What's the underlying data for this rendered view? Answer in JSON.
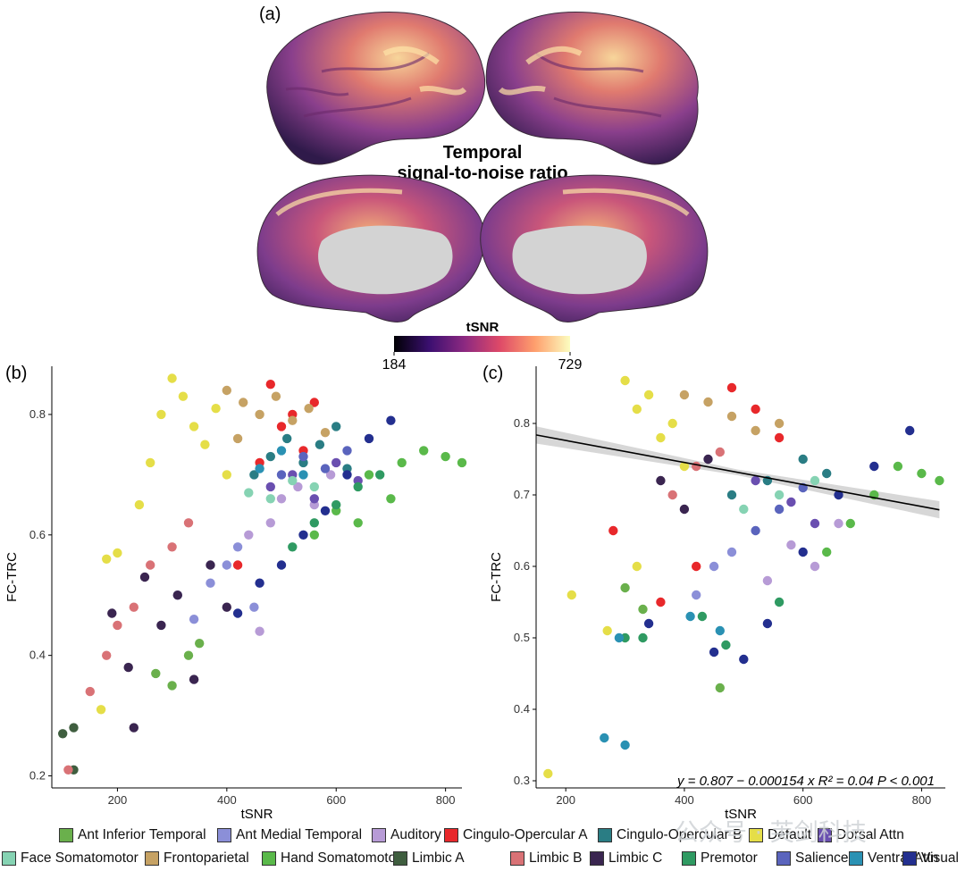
{
  "panels": {
    "a": {
      "label": "(a)",
      "title_line1": "Temporal",
      "title_line2": "signal-to-noise ratio",
      "colorbar": {
        "title": "tSNR",
        "min": "184",
        "max": "729",
        "colors": [
          "#000004",
          "#3b0f70",
          "#8c2981",
          "#de4968",
          "#fe9f6d",
          "#fcfdbf"
        ]
      }
    },
    "b": {
      "label": "(b)"
    },
    "c": {
      "label": "(c)",
      "equation": "y = 0.807 − 0.000154 x   R² = 0.04   P < 0.001"
    }
  },
  "chart_data": [
    {
      "panel": "b",
      "type": "scatter",
      "xlabel": "tSNR",
      "ylabel": "FC-TRC",
      "xlim": [
        80,
        830
      ],
      "ylim": [
        0.18,
        0.88
      ],
      "xticks": [
        200,
        400,
        600,
        800
      ],
      "yticks": [
        0.2,
        0.4,
        0.6,
        0.8
      ],
      "grid": false,
      "series": [
        {
          "name": "Ant Inferior Temporal",
          "color": "#6ab04c",
          "points": [
            [
              270,
              0.37
            ],
            [
              300,
              0.35
            ],
            [
              330,
              0.4
            ],
            [
              350,
              0.42
            ]
          ]
        },
        {
          "name": "Ant Medial Temporal",
          "color": "#8b8fd8",
          "points": [
            [
              310,
              0.5
            ],
            [
              340,
              0.46
            ],
            [
              370,
              0.52
            ],
            [
              400,
              0.55
            ],
            [
              420,
              0.58
            ],
            [
              450,
              0.48
            ]
          ]
        },
        {
          "name": "Auditory",
          "color": "#b79bd6",
          "points": [
            [
              440,
              0.6
            ],
            [
              460,
              0.44
            ],
            [
              480,
              0.62
            ],
            [
              500,
              0.66
            ],
            [
              530,
              0.68
            ],
            [
              560,
              0.65
            ],
            [
              590,
              0.7
            ]
          ]
        },
        {
          "name": "Cingulo-Opercular A",
          "color": "#e8282b",
          "points": [
            [
              420,
              0.55
            ],
            [
              460,
              0.72
            ],
            [
              480,
              0.85
            ],
            [
              500,
              0.78
            ],
            [
              520,
              0.8
            ],
            [
              540,
              0.74
            ],
            [
              560,
              0.82
            ]
          ]
        },
        {
          "name": "Cingulo-Opercular B",
          "color": "#2a7d84",
          "points": [
            [
              450,
              0.7
            ],
            [
              480,
              0.73
            ],
            [
              510,
              0.76
            ],
            [
              540,
              0.72
            ],
            [
              570,
              0.75
            ],
            [
              600,
              0.78
            ],
            [
              620,
              0.71
            ]
          ]
        },
        {
          "name": "Default",
          "color": "#e5de48",
          "points": [
            [
              180,
              0.56
            ],
            [
              200,
              0.57
            ],
            [
              240,
              0.65
            ],
            [
              260,
              0.72
            ],
            [
              280,
              0.8
            ],
            [
              300,
              0.86
            ],
            [
              320,
              0.83
            ],
            [
              340,
              0.78
            ],
            [
              360,
              0.75
            ],
            [
              380,
              0.81
            ],
            [
              400,
              0.7
            ],
            [
              170,
              0.31
            ]
          ]
        },
        {
          "name": "Dorsal Attn",
          "color": "#6a4fb0",
          "points": [
            [
              480,
              0.68
            ],
            [
              520,
              0.7
            ],
            [
              560,
              0.66
            ],
            [
              600,
              0.72
            ],
            [
              640,
              0.69
            ]
          ]
        },
        {
          "name": "Face Somatomotor",
          "color": "#86d3b3",
          "points": [
            [
              440,
              0.67
            ],
            [
              480,
              0.66
            ],
            [
              520,
              0.69
            ],
            [
              560,
              0.68
            ]
          ]
        },
        {
          "name": "Frontoparietal",
          "color": "#c6a264",
          "points": [
            [
              400,
              0.84
            ],
            [
              430,
              0.82
            ],
            [
              460,
              0.8
            ],
            [
              490,
              0.83
            ],
            [
              520,
              0.79
            ],
            [
              550,
              0.81
            ],
            [
              580,
              0.77
            ],
            [
              420,
              0.76
            ]
          ]
        },
        {
          "name": "Hand Somatomotor",
          "color": "#5ab94a",
          "points": [
            [
              560,
              0.6
            ],
            [
              600,
              0.64
            ],
            [
              640,
              0.62
            ],
            [
              660,
              0.7
            ],
            [
              700,
              0.66
            ],
            [
              720,
              0.72
            ],
            [
              760,
              0.74
            ],
            [
              800,
              0.73
            ],
            [
              830,
              0.72
            ]
          ]
        },
        {
          "name": "Limbic A",
          "color": "#3f5e3f",
          "points": [
            [
              100,
              0.27
            ],
            [
              120,
              0.28
            ],
            [
              120,
              0.21
            ]
          ]
        },
        {
          "name": "Limbic B",
          "color": "#d97276",
          "points": [
            [
              110,
              0.21
            ],
            [
              150,
              0.34
            ],
            [
              180,
              0.4
            ],
            [
              200,
              0.45
            ],
            [
              230,
              0.48
            ],
            [
              260,
              0.55
            ],
            [
              300,
              0.58
            ],
            [
              330,
              0.62
            ]
          ]
        },
        {
          "name": "Limbic C",
          "color": "#3a2550",
          "points": [
            [
              190,
              0.47
            ],
            [
              220,
              0.38
            ],
            [
              230,
              0.28
            ],
            [
              250,
              0.53
            ],
            [
              280,
              0.45
            ],
            [
              310,
              0.5
            ],
            [
              340,
              0.36
            ],
            [
              370,
              0.55
            ],
            [
              400,
              0.48
            ]
          ]
        },
        {
          "name": "Premotor",
          "color": "#2f9a62",
          "points": [
            [
              520,
              0.58
            ],
            [
              560,
              0.62
            ],
            [
              600,
              0.65
            ],
            [
              640,
              0.68
            ],
            [
              680,
              0.7
            ]
          ]
        },
        {
          "name": "Salience",
          "color": "#5a64bd",
          "points": [
            [
              500,
              0.7
            ],
            [
              540,
              0.73
            ],
            [
              580,
              0.71
            ],
            [
              620,
              0.74
            ]
          ]
        },
        {
          "name": "Ventral Attn",
          "color": "#2a91b3",
          "points": [
            [
              460,
              0.71
            ],
            [
              500,
              0.74
            ],
            [
              540,
              0.7
            ]
          ]
        },
        {
          "name": "Visual",
          "color": "#232f8f",
          "points": [
            [
              420,
              0.47
            ],
            [
              460,
              0.52
            ],
            [
              500,
              0.55
            ],
            [
              540,
              0.6
            ],
            [
              580,
              0.64
            ],
            [
              620,
              0.7
            ],
            [
              660,
              0.76
            ],
            [
              700,
              0.79
            ]
          ]
        }
      ]
    },
    {
      "panel": "c",
      "type": "scatter",
      "xlabel": "tSNR",
      "ylabel": "FC-TRC",
      "xlim": [
        150,
        840
      ],
      "ylim": [
        0.29,
        0.88
      ],
      "xticks": [
        200,
        400,
        600,
        800
      ],
      "yticks": [
        0.3,
        0.4,
        0.5,
        0.6,
        0.7,
        0.8
      ],
      "grid": false,
      "fit": {
        "intercept": 0.807,
        "slope": -0.000154,
        "x_from": 150,
        "x_to": 830,
        "r2": 0.04
      },
      "series": [
        {
          "name": "Ant Inferior Temporal",
          "color": "#6ab04c",
          "points": [
            [
              300,
              0.57
            ],
            [
              330,
              0.54
            ],
            [
              460,
              0.43
            ]
          ]
        },
        {
          "name": "Ant Medial Temporal",
          "color": "#8b8fd8",
          "points": [
            [
              420,
              0.56
            ],
            [
              450,
              0.6
            ],
            [
              480,
              0.62
            ]
          ]
        },
        {
          "name": "Auditory",
          "color": "#b79bd6",
          "points": [
            [
              540,
              0.58
            ],
            [
              580,
              0.63
            ],
            [
              620,
              0.6
            ],
            [
              660,
              0.66
            ]
          ]
        },
        {
          "name": "Cingulo-Opercular A",
          "color": "#e8282b",
          "points": [
            [
              280,
              0.65
            ],
            [
              360,
              0.55
            ],
            [
              420,
              0.6
            ],
            [
              480,
              0.85
            ],
            [
              520,
              0.82
            ],
            [
              560,
              0.78
            ]
          ]
        },
        {
          "name": "Cingulo-Opercular B",
          "color": "#2a7d84",
          "points": [
            [
              480,
              0.7
            ],
            [
              540,
              0.72
            ],
            [
              600,
              0.75
            ],
            [
              640,
              0.73
            ]
          ]
        },
        {
          "name": "Default",
          "color": "#e5de48",
          "points": [
            [
              170,
              0.31
            ],
            [
              210,
              0.56
            ],
            [
              270,
              0.51
            ],
            [
              300,
              0.86
            ],
            [
              320,
              0.82
            ],
            [
              340,
              0.84
            ],
            [
              360,
              0.78
            ],
            [
              380,
              0.8
            ],
            [
              400,
              0.74
            ],
            [
              320,
              0.6
            ]
          ]
        },
        {
          "name": "Dorsal Attn",
          "color": "#6a4fb0",
          "points": [
            [
              520,
              0.72
            ],
            [
              580,
              0.69
            ],
            [
              620,
              0.66
            ]
          ]
        },
        {
          "name": "Face Somatomotor",
          "color": "#86d3b3",
          "points": [
            [
              500,
              0.68
            ],
            [
              560,
              0.7
            ],
            [
              620,
              0.72
            ]
          ]
        },
        {
          "name": "Frontoparietal",
          "color": "#c6a264",
          "points": [
            [
              400,
              0.84
            ],
            [
              440,
              0.83
            ],
            [
              480,
              0.81
            ],
            [
              520,
              0.79
            ],
            [
              560,
              0.8
            ]
          ]
        },
        {
          "name": "Hand Somatomotor",
          "color": "#5ab94a",
          "points": [
            [
              640,
              0.62
            ],
            [
              680,
              0.66
            ],
            [
              720,
              0.7
            ],
            [
              760,
              0.74
            ],
            [
              800,
              0.73
            ],
            [
              830,
              0.72
            ]
          ]
        },
        {
          "name": "Limbic A",
          "color": "#3f5e3f",
          "points": []
        },
        {
          "name": "Limbic B",
          "color": "#d97276",
          "points": [
            [
              380,
              0.7
            ],
            [
              420,
              0.74
            ],
            [
              460,
              0.76
            ]
          ]
        },
        {
          "name": "Limbic C",
          "color": "#3a2550",
          "points": [
            [
              360,
              0.72
            ],
            [
              400,
              0.68
            ],
            [
              440,
              0.75
            ]
          ]
        },
        {
          "name": "Premotor",
          "color": "#2f9a62",
          "points": [
            [
              300,
              0.5
            ],
            [
              330,
              0.5
            ],
            [
              430,
              0.53
            ],
            [
              470,
              0.49
            ],
            [
              560,
              0.55
            ]
          ]
        },
        {
          "name": "Salience",
          "color": "#5a64bd",
          "points": [
            [
              520,
              0.65
            ],
            [
              560,
              0.68
            ],
            [
              600,
              0.71
            ]
          ]
        },
        {
          "name": "Ventral Attn",
          "color": "#2a91b3",
          "points": [
            [
              265,
              0.36
            ],
            [
              300,
              0.35
            ],
            [
              290,
              0.5
            ],
            [
              410,
              0.53
            ],
            [
              460,
              0.51
            ]
          ]
        },
        {
          "name": "Visual",
          "color": "#232f8f",
          "points": [
            [
              340,
              0.52
            ],
            [
              450,
              0.48
            ],
            [
              500,
              0.47
            ],
            [
              540,
              0.52
            ],
            [
              600,
              0.62
            ],
            [
              660,
              0.7
            ],
            [
              720,
              0.74
            ],
            [
              780,
              0.79
            ]
          ]
        }
      ]
    }
  ],
  "legend": {
    "row1": [
      {
        "label": "Ant Inferior Temporal",
        "color": "#6ab04c"
      },
      {
        "label": "Ant Medial Temporal",
        "color": "#8b8fd8"
      },
      {
        "label": "Auditory",
        "color": "#b79bd6"
      },
      {
        "label": "Cingulo-Opercular A",
        "color": "#e8282b"
      },
      {
        "label": "Cingulo-Opercular B",
        "color": "#2a7d84"
      },
      {
        "label": "Default",
        "color": "#e5de48"
      },
      {
        "label": "Dorsal Attn",
        "color": "#6a4fb0"
      }
    ],
    "row2": [
      {
        "label": "Face Somatomotor",
        "color": "#86d3b3"
      },
      {
        "label": "Frontoparietal",
        "color": "#c6a264"
      },
      {
        "label": "Hand Somatomotor",
        "color": "#5ab94a"
      },
      {
        "label": "Limbic A",
        "color": "#3f5e3f"
      },
      {
        "label": "Limbic B",
        "color": "#d97276"
      },
      {
        "label": "Limbic C",
        "color": "#3a2550"
      },
      {
        "label": "Premotor",
        "color": "#2f9a62"
      },
      {
        "label": "Salience",
        "color": "#5a64bd"
      },
      {
        "label": "Ventral Attn",
        "color": "#2a91b3"
      },
      {
        "label": "Visual",
        "color": "#232f8f"
      }
    ]
  },
  "watermark": "公众号 · 芙剑科技"
}
